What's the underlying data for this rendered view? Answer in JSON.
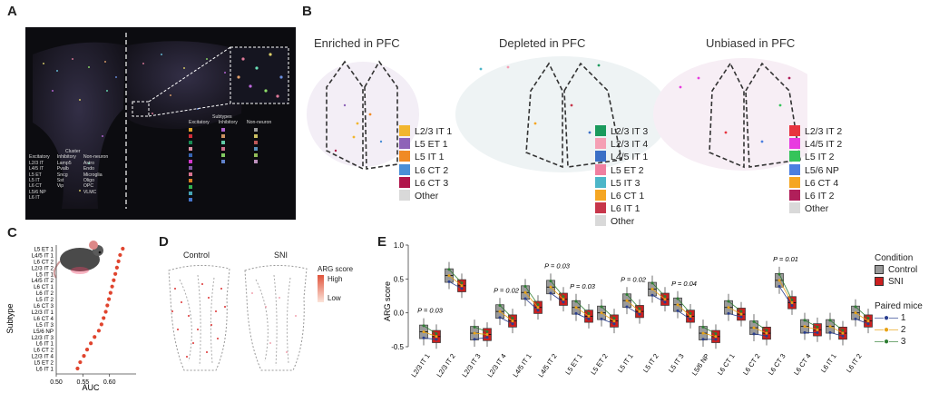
{
  "panels": {
    "A": {
      "letter": "A",
      "legend_headers": [
        "Cluster",
        "Excitatory",
        "Inhibitory",
        "Non-neuron"
      ],
      "excitatory": [
        "L2/3 IT",
        "L4/5 IT",
        "L5 ET",
        "L5 IT",
        "L6 CT",
        "L5/6 NP",
        "L6 IT"
      ],
      "inhibitory": [
        "Lamp5",
        "Pvalb",
        "Sncg",
        "Sst",
        "Vip"
      ],
      "non_neuron": [
        "Astro",
        "Endo",
        "Microglia",
        "Oligo",
        "OPC",
        "VLMC"
      ],
      "right_headers": [
        "Subtypes",
        "Excitatory",
        "Inhibitory",
        "Non-neuron"
      ]
    },
    "B": {
      "letter": "B",
      "titles": [
        "Enriched in PFC",
        "Depleted in PFC",
        "Unbiased in PFC"
      ],
      "legends": [
        {
          "items": [
            {
              "label": "L2/3 IT 1",
              "color": "#f2b62f"
            },
            {
              "label": "L5 ET 1",
              "color": "#8e63b8"
            },
            {
              "label": "L5 IT 1",
              "color": "#f08a24"
            },
            {
              "label": "L6 CT 2",
              "color": "#4a8fd6"
            },
            {
              "label": "L6 CT 3",
              "color": "#b0154a"
            },
            {
              "label": "Other",
              "color": "#d9d9d9"
            }
          ]
        },
        {
          "items": [
            {
              "label": "L2/3 IT 3",
              "color": "#1a9a5c"
            },
            {
              "label": "L2/3 IT 4",
              "color": "#f59fb4"
            },
            {
              "label": "L4/5 IT 1",
              "color": "#3b6fc6"
            },
            {
              "label": "L5 ET 2",
              "color": "#f07fa0"
            },
            {
              "label": "L5 IT 3",
              "color": "#4db6c8"
            },
            {
              "label": "L6 CT 1",
              "color": "#f5a623"
            },
            {
              "label": "L6 IT 1",
              "color": "#c7364a"
            },
            {
              "label": "Other",
              "color": "#d9d9d9"
            }
          ]
        },
        {
          "items": [
            {
              "label": "L2/3 IT 2",
              "color": "#e8333f"
            },
            {
              "label": "L4/5 IT 2",
              "color": "#e83be0"
            },
            {
              "label": "L5 IT 2",
              "color": "#35c45a"
            },
            {
              "label": "L5/6 NP",
              "color": "#4b7fe0"
            },
            {
              "label": "L6 CT 4",
              "color": "#f5a623"
            },
            {
              "label": "L6 IT 2",
              "color": "#b01f5a"
            },
            {
              "label": "Other",
              "color": "#d9d9d9"
            }
          ]
        }
      ]
    },
    "C": {
      "letter": "C",
      "ylabel": "Subtype",
      "xlabel": "AUC",
      "xticks": [
        "0.50",
        "0.55",
        "0.60"
      ]
    },
    "D": {
      "letter": "D",
      "titles": [
        "Control",
        "SNI"
      ],
      "colorbar_title": "ARG score",
      "colorbar_high": "High",
      "colorbar_low": "Low"
    },
    "E": {
      "letter": "E",
      "ylabel": "ARG score",
      "legend_title": "Condition",
      "conditions": [
        {
          "label": "Control",
          "color": "#9a9a9a"
        },
        {
          "label": "SNI",
          "color": "#cc1f1f"
        }
      ],
      "paired_title": "Paired mice",
      "paired": [
        {
          "label": "1",
          "color": "#2a3f8f"
        },
        {
          "label": "2",
          "color": "#e8a316"
        },
        {
          "label": "3",
          "color": "#2e7d32"
        }
      ]
    }
  },
  "chart_data": [
    {
      "type": "scatter",
      "panel": "C",
      "title": "",
      "xlabel": "AUC",
      "ylabel": "Subtype",
      "xlim": [
        0.5,
        0.65
      ],
      "categories": [
        "L5 ET 1",
        "L4/5 IT 1",
        "L6 CT 2",
        "L2/3 IT 2",
        "L5 IT 1",
        "L4/5 IT 2",
        "L6 CT 1",
        "L6 IT 2",
        "L5 IT 2",
        "L6 CT 3",
        "L2/3 IT 1",
        "L6 CT 4",
        "L5 IT 3",
        "L5/6 NP",
        "L2/3 IT 3",
        "L6 IT 1",
        "L6 CT 2",
        "L2/3 IT 4",
        "L5 ET 2",
        "L6 IT 1"
      ],
      "values": [
        0.625,
        0.62,
        0.617,
        0.614,
        0.611,
        0.608,
        0.605,
        0.602,
        0.599,
        0.596,
        0.593,
        0.589,
        0.585,
        0.58,
        0.572,
        0.565,
        0.558,
        0.552,
        0.545,
        0.54
      ],
      "grid": false
    },
    {
      "type": "box",
      "panel": "E",
      "title": "",
      "xlabel": "",
      "ylabel": "ARG score",
      "ylim": [
        -0.5,
        1.0
      ],
      "yticks": [
        "-0.5",
        "0.0",
        "0.5",
        "1.0"
      ],
      "categories": [
        "L2/3 IT 1",
        "L2/3 IT 2",
        "L2/3 IT 3",
        "L2/3 IT 4",
        "L4/5 IT 1",
        "L4/5 IT 2",
        "L5 ET 1",
        "L5 ET 2",
        "L5 IT 1",
        "L5 IT 2",
        "L5 IT 3",
        "L5/6 NP",
        "L6 CT 1",
        "L6 CT 2",
        "L6 CT 3",
        "L6 CT 4",
        "L6 IT 1",
        "L6 IT 2"
      ],
      "series": [
        {
          "name": "Control",
          "values": [
            -0.28,
            0.55,
            -0.3,
            0.02,
            0.3,
            0.38,
            0.08,
            0.0,
            0.18,
            0.35,
            0.12,
            -0.3,
            0.08,
            -0.22,
            0.48,
            -0.2,
            -0.2,
            0.0
          ]
        },
        {
          "name": "SNI",
          "values": [
            -0.35,
            0.4,
            -0.32,
            -0.12,
            0.08,
            0.2,
            -0.05,
            -0.12,
            0.02,
            0.2,
            -0.05,
            -0.35,
            -0.02,
            -0.3,
            0.15,
            -0.25,
            -0.3,
            -0.12
          ]
        }
      ],
      "annotations": [
        {
          "category": "L2/3 IT 1",
          "text": "P = 0.03"
        },
        {
          "category": "L2/3 IT 4",
          "text": "P = 0.02"
        },
        {
          "category": "L4/5 IT 2",
          "text": "P = 0.03"
        },
        {
          "category": "L5 ET 1",
          "text": "P = 0.03"
        },
        {
          "category": "L5 IT 1",
          "text": "P = 0.02"
        },
        {
          "category": "L5 IT 3",
          "text": "P = 0.04"
        },
        {
          "category": "L6 CT 3",
          "text": "P = 0.01"
        }
      ]
    }
  ]
}
